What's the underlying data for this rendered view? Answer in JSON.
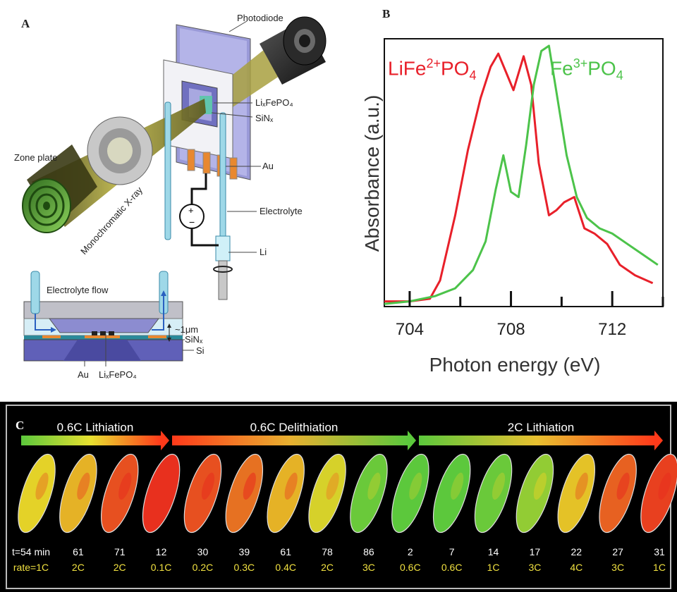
{
  "panel_a": {
    "letter": "A",
    "labels": {
      "photodiode": "Photodiode",
      "lixfepo4": "LiₓFePO₄",
      "sinx": "SiNₓ",
      "au": "Au",
      "electrolyte": "Electrolyte",
      "li": "Li",
      "zone_plate": "Zone plate",
      "xray": "Monochromatic X-ray",
      "electrolyte_flow": "Electrolyte flow",
      "gap": "~1μm",
      "sinx_bottom": "SiNₓ",
      "si": "Si",
      "au_bottom": "Au",
      "lixfepo4_bottom": "LiₓFePO₄"
    }
  },
  "panel_b": {
    "letter": "B",
    "chart_data": {
      "type": "line",
      "xlabel": "Photon energy (eV)",
      "ylabel": "Absorbance (a.u.)",
      "xlim": [
        703,
        714
      ],
      "ylim": [
        0,
        1
      ],
      "xticks": [
        704,
        708,
        712
      ],
      "series": [
        {
          "name": "LiFe2+PO4",
          "label_main": "LiFe",
          "label_sup": "2+",
          "label_tail": "PO",
          "label_sub": "4",
          "color": "#e8202a",
          "x": [
            703.0,
            704.0,
            704.8,
            705.2,
            705.8,
            706.3,
            706.8,
            707.2,
            707.5,
            707.8,
            708.1,
            708.5,
            708.8,
            709.1,
            709.5,
            709.8,
            710.1,
            710.5,
            710.9,
            711.3,
            711.8,
            712.3,
            712.9,
            713.6
          ],
          "y": [
            0.02,
            0.02,
            0.03,
            0.1,
            0.35,
            0.6,
            0.8,
            0.92,
            0.97,
            0.9,
            0.83,
            0.96,
            0.85,
            0.55,
            0.35,
            0.37,
            0.4,
            0.42,
            0.3,
            0.28,
            0.24,
            0.16,
            0.12,
            0.09
          ]
        },
        {
          "name": "Fe3+PO4",
          "label_main": "Fe",
          "label_sup": "3+",
          "label_tail": "PO",
          "label_sub": "4",
          "color": "#4cc34a",
          "x": [
            703.0,
            704.0,
            705.0,
            705.8,
            706.5,
            707.0,
            707.4,
            707.7,
            708.0,
            708.3,
            708.6,
            708.9,
            709.2,
            709.5,
            709.8,
            710.2,
            710.6,
            711.0,
            711.5,
            712.0,
            712.6,
            713.2,
            713.8
          ],
          "y": [
            0.01,
            0.02,
            0.04,
            0.07,
            0.14,
            0.25,
            0.45,
            0.58,
            0.44,
            0.42,
            0.62,
            0.85,
            0.98,
            1.0,
            0.82,
            0.58,
            0.42,
            0.34,
            0.3,
            0.28,
            0.24,
            0.2,
            0.16
          ]
        }
      ]
    }
  },
  "panel_c": {
    "letter": "C",
    "phases": [
      {
        "label": "0.6C Lithiation",
        "from": "#5cc83c",
        "to": "#ff3a1a"
      },
      {
        "label": "0.6C Delithiation",
        "from": "#ff3a1a",
        "to": "#5cc83c"
      },
      {
        "label": "2C Lithiation",
        "from": "#5cc83c",
        "to": "#ff3a1a"
      }
    ],
    "particles": [
      {
        "t": "t=54 min",
        "rate": "rate=1C",
        "state": 0.5
      },
      {
        "t": "61",
        "rate": "2C",
        "state": 0.6
      },
      {
        "t": "71",
        "rate": "2C",
        "state": 0.9
      },
      {
        "t": "12",
        "rate": "0.1C",
        "state": 1.0
      },
      {
        "t": "30",
        "rate": "0.2C",
        "state": 0.9
      },
      {
        "t": "39",
        "rate": "0.3C",
        "state": 0.8
      },
      {
        "t": "61",
        "rate": "0.4C",
        "state": 0.6
      },
      {
        "t": "78",
        "rate": "2C",
        "state": 0.45
      },
      {
        "t": "86",
        "rate": "3C",
        "state": 0.05
      },
      {
        "t": "2",
        "rate": "0.6C",
        "state": 0.0
      },
      {
        "t": "7",
        "rate": "0.6C",
        "state": 0.0
      },
      {
        "t": "14",
        "rate": "1C",
        "state": 0.05
      },
      {
        "t": "17",
        "rate": "3C",
        "state": 0.2
      },
      {
        "t": "22",
        "rate": "4C",
        "state": 0.55
      },
      {
        "t": "27",
        "rate": "3C",
        "state": 0.85
      },
      {
        "t": "31",
        "rate": "1C",
        "state": 0.95
      }
    ]
  }
}
